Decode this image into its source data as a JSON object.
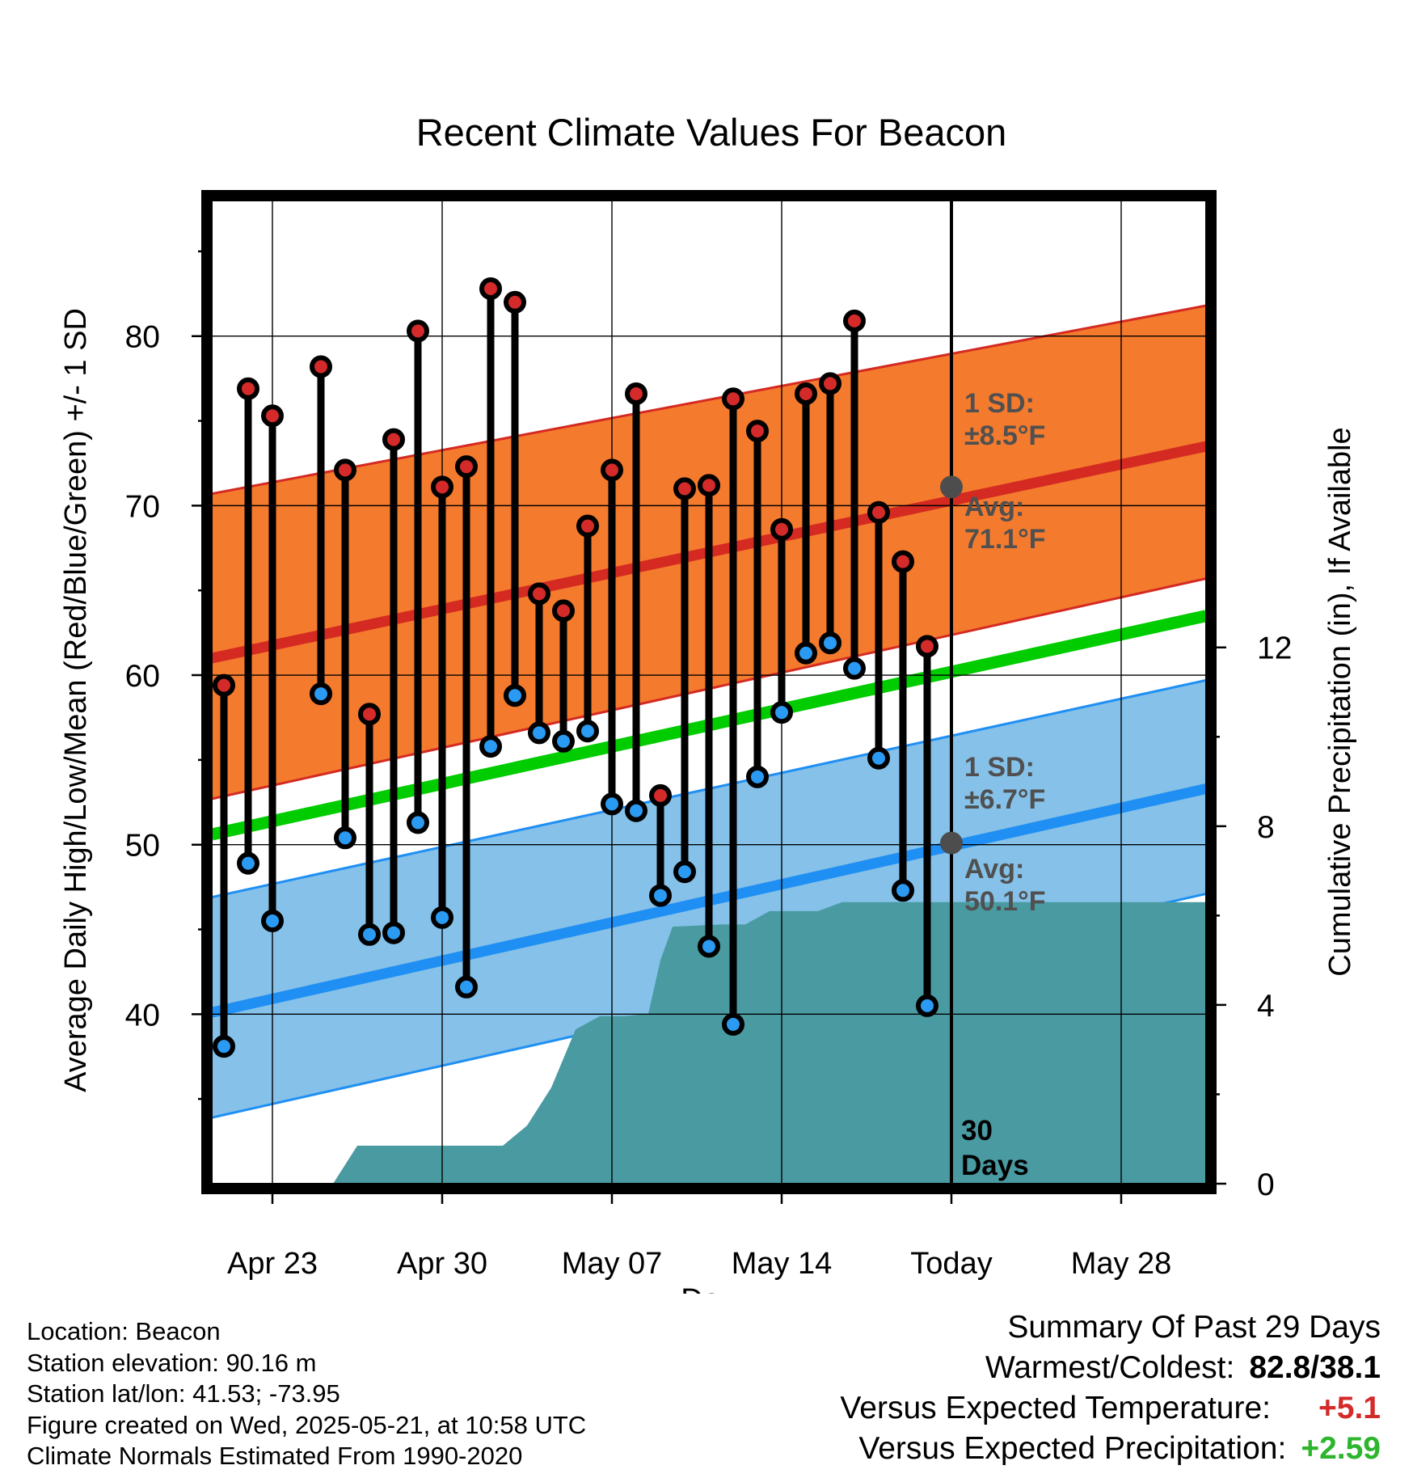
{
  "chart_data": {
    "type": "line",
    "title": "Recent Climate Values For Beacon",
    "xlabel": "Day",
    "ylabel": "Average Daily High/Low/Mean (Red/Blue/Green) +/- 1 SD",
    "y2label": "Cumulative Precipitation (in), If Available",
    "ylim": [
      30,
      88
    ],
    "y2lim": [
      0,
      22
    ],
    "yticks": [
      40,
      50,
      60,
      70,
      80
    ],
    "y2ticks": [
      0,
      4,
      8,
      12
    ],
    "x_tick_labels": [
      "Apr 23",
      "Apr 30",
      "May 07",
      "May 14",
      "Today",
      "May 28"
    ],
    "x_tick_days": [
      2,
      9,
      16,
      23,
      30,
      37
    ],
    "xlim": [
      -0.5,
      40.5
    ],
    "grid": true,
    "today_marker_label": "30\nDays",
    "daily": {
      "days": [
        0,
        1,
        2,
        4,
        5,
        6,
        7,
        8,
        9,
        10,
        11,
        12,
        13,
        14,
        15,
        16,
        17,
        18,
        19,
        20,
        21,
        22,
        23,
        24,
        25,
        26,
        27,
        28,
        29
      ],
      "highs": [
        59.4,
        76.9,
        75.3,
        78.2,
        72.1,
        57.7,
        73.9,
        80.3,
        71.1,
        72.3,
        82.8,
        82.0,
        64.8,
        63.8,
        68.8,
        72.1,
        76.6,
        52.9,
        71.0,
        71.2,
        76.3,
        74.4,
        68.6,
        76.6,
        77.2,
        80.9,
        69.6,
        66.7,
        61.7
      ],
      "lows": [
        38.1,
        48.9,
        45.5,
        58.9,
        50.4,
        44.7,
        44.8,
        51.3,
        45.7,
        41.6,
        55.8,
        58.8,
        56.6,
        56.1,
        56.7,
        52.4,
        52.0,
        47.0,
        48.4,
        44.0,
        39.4,
        54.0,
        57.8,
        61.3,
        61.9,
        60.4,
        55.1,
        47.3,
        40.5
      ]
    },
    "normals": {
      "days": [
        -0.5,
        40.5
      ],
      "avg_high": [
        61.0,
        73.5
      ],
      "avg_high_upper": [
        70.7,
        81.8
      ],
      "avg_high_lower": [
        52.7,
        65.7
      ],
      "avg_mean": [
        50.6,
        63.5
      ],
      "avg_low": [
        40.1,
        53.3
      ],
      "avg_low_upper": [
        46.9,
        59.7
      ],
      "avg_low_lower": [
        33.9,
        47.1
      ]
    },
    "precip": {
      "days": [
        4.5,
        5.5,
        11.5,
        12.5,
        13.5,
        14.5,
        15.5,
        16.5,
        17.5,
        18.0,
        18.5,
        20.5,
        21.5,
        22.5,
        23.5,
        24.5,
        25.5,
        26.5,
        40.5
      ],
      "cumulative": [
        0,
        0.85,
        0.85,
        1.3,
        2.15,
        3.45,
        3.75,
        3.75,
        3.8,
        5.0,
        5.75,
        5.8,
        5.8,
        6.1,
        6.1,
        6.1,
        6.3,
        6.3,
        6.3
      ]
    },
    "annotations": {
      "high_sd": "1 SD:\n±8.5°F",
      "high_avg": "Avg:\n71.1°F",
      "high_avg_value": 71.1,
      "low_sd": "1 SD:\n±6.7°F",
      "low_avg": "Avg:\n50.1°F",
      "low_avg_value": 50.1
    },
    "colors": {
      "high_band": "#f47a2d",
      "high_line": "#d42a22",
      "low_band": "#85c1e9",
      "low_line": "#1f8ff3",
      "mean_line": "#00cc00",
      "precip": "#4a9aa2",
      "high_dot": "#d42a2a",
      "low_dot": "#2a9af2",
      "annotation": "#505050"
    }
  },
  "footer": {
    "location": "Location: Beacon",
    "elevation": "Station elevation: 90.16 m",
    "latlon": "Station lat/lon: 41.53; -73.95",
    "created": "Figure created on Wed, 2025-05-21, at 10:58 UTC",
    "normals": "Climate Normals Estimated From 1990-2020"
  },
  "summary": {
    "title": "Summary Of Past 29 Days",
    "warmest_coldest_label": "Warmest/Coldest:",
    "warmest_coldest_value": "82.8/38.1",
    "temp_label": "Versus Expected Temperature:",
    "temp_value": "+5.1",
    "precip_label": "Versus Expected Precipitation:",
    "precip_value": "+2.59"
  }
}
